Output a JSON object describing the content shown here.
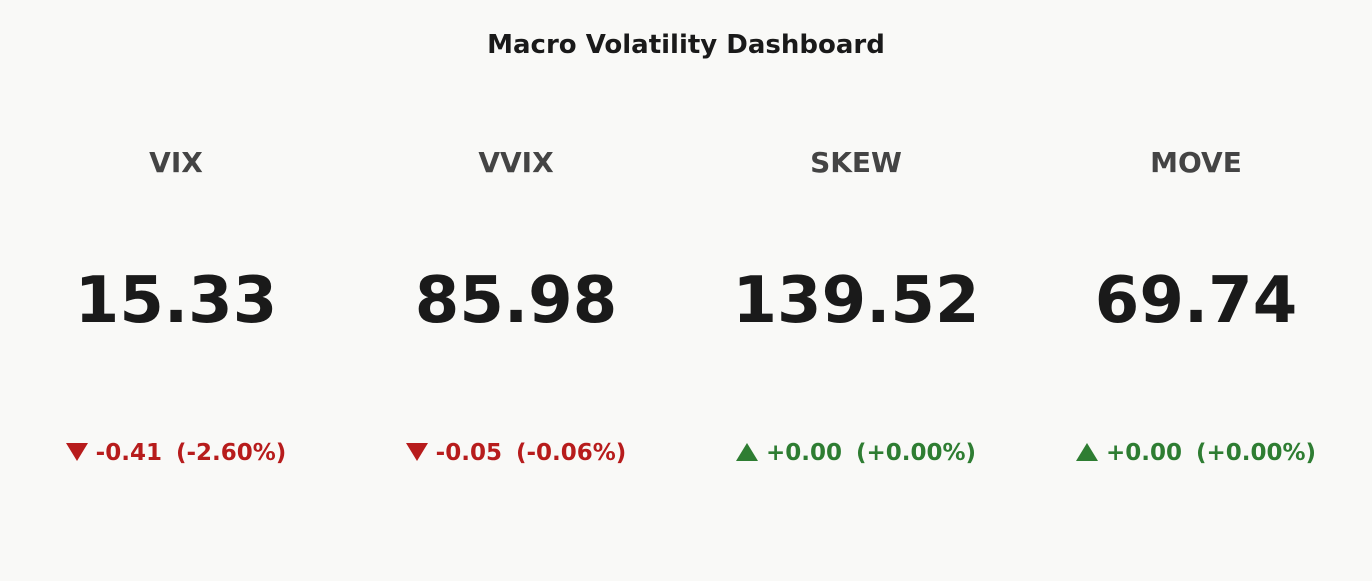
{
  "title": "Macro Volatility Dashboard",
  "indicators": [
    {
      "label": "VIX",
      "value": 15.33,
      "change": "-0.41",
      "change_pct": "(-2.60%)"
    },
    {
      "label": "VVIX",
      "value": 85.98,
      "change": "-0.05",
      "change_pct": "(-0.06%)"
    },
    {
      "label": "SKEW",
      "value": 139.52,
      "change": "+0.00",
      "change_pct": "(+0.00%)"
    },
    {
      "label": "MOVE",
      "value": 69.74,
      "change": "+0.00",
      "change_pct": "(+0.00%)"
    }
  ]
}
